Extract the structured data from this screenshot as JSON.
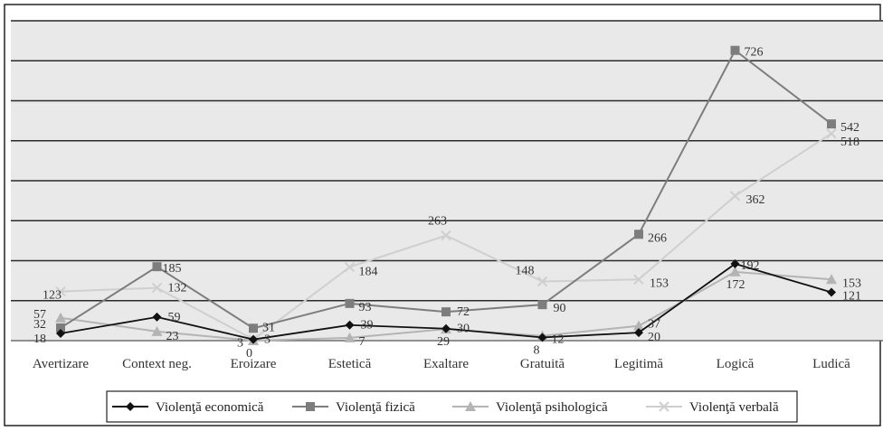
{
  "chart_data": {
    "type": "line",
    "title": "",
    "xlabel": "",
    "ylabel": "",
    "ylim": [
      0,
      800
    ],
    "grid": true,
    "legend_position": "bottom",
    "categories": [
      "Avertizare",
      "Context neg.",
      "Eroizare",
      "Estetică",
      "Exaltare",
      "Gratuită",
      "Legitimă",
      "Logică",
      "Ludică"
    ],
    "series": [
      {
        "name": "Violenţă economică",
        "marker": "diamond",
        "color": "#111111",
        "values": [
          18,
          59,
          3,
          39,
          30,
          8,
          20,
          192,
          121
        ]
      },
      {
        "name": "Violenţă fizică",
        "marker": "square",
        "color": "#7d7d7d",
        "values": [
          32,
          185,
          31,
          93,
          72,
          90,
          266,
          726,
          542
        ]
      },
      {
        "name": "Violenţă psihologică",
        "marker": "triangle",
        "color": "#b4b4b4",
        "values": [
          57,
          23,
          0,
          7,
          29,
          12,
          37,
          172,
          153
        ]
      },
      {
        "name": "Violenţă verbală",
        "marker": "cross",
        "color": "#cfcfcf",
        "values": [
          123,
          132,
          3,
          184,
          263,
          148,
          153,
          362,
          518
        ]
      }
    ]
  }
}
